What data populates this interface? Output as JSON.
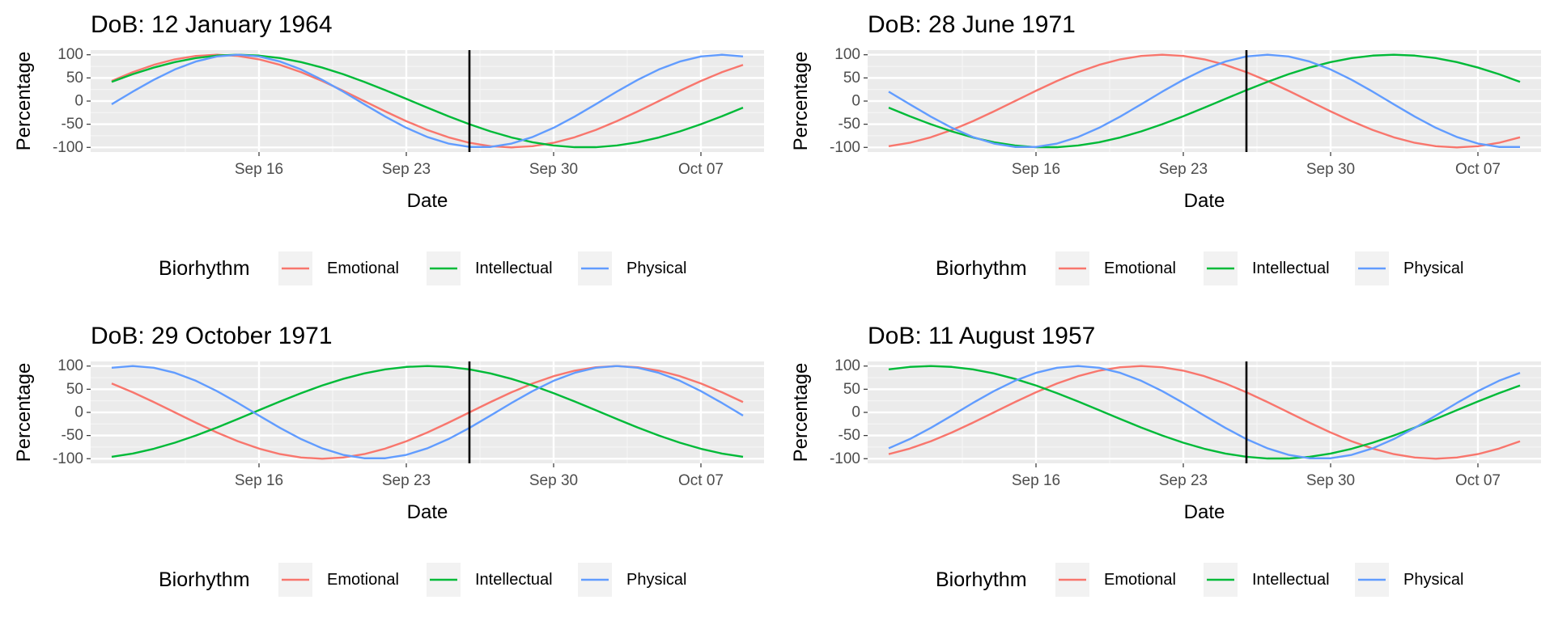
{
  "figure": {
    "legend_position": "bottom",
    "background": "#ffffff"
  },
  "colors": {
    "panel_bg": "#ebebeb",
    "grid_major": "#ffffff",
    "grid_minor": "#f5f5f5",
    "vline": "#000000",
    "Emotional": "#F8766D",
    "Intellectual": "#00BA38",
    "Physical": "#619CFF"
  },
  "chart_data": [
    {
      "type": "line",
      "title": "DoB: 12 January 1964",
      "xlabel": "Date",
      "ylabel": "Percentage",
      "x_range": [
        "2019-09-09",
        "2019-10-09"
      ],
      "xlim": [
        "2019-09-08",
        "2019-10-10"
      ],
      "ylim": [
        -110,
        110
      ],
      "x_ticks": [
        "Sep 16",
        "Sep 23",
        "Sep 30",
        "Oct 07"
      ],
      "x_tick_dates": [
        "2019-09-16",
        "2019-09-23",
        "2019-09-30",
        "2019-10-07"
      ],
      "y_ticks": [
        100,
        50,
        0,
        -50,
        -100
      ],
      "grid": true,
      "vline_date": "2019-09-26",
      "legend": {
        "title": "Biorhythm",
        "position": "bottom",
        "entries": [
          "Emotional",
          "Intellectual",
          "Physical"
        ]
      },
      "series": [
        {
          "name": "Emotional",
          "period_days": 28,
          "peak_date": "2019-09-14"
        },
        {
          "name": "Intellectual",
          "period_days": 33,
          "peak_date": "2019-09-15"
        },
        {
          "name": "Physical",
          "period_days": 23,
          "peak_date": "2019-09-15"
        }
      ]
    },
    {
      "type": "line",
      "title": "DoB: 28 June 1971",
      "xlabel": "Date",
      "ylabel": "Percentage",
      "x_range": [
        "2019-09-09",
        "2019-10-09"
      ],
      "xlim": [
        "2019-09-08",
        "2019-10-10"
      ],
      "ylim": [
        -110,
        110
      ],
      "x_ticks": [
        "Sep 16",
        "Sep 23",
        "Sep 30",
        "Oct 07"
      ],
      "x_tick_dates": [
        "2019-09-16",
        "2019-09-23",
        "2019-09-30",
        "2019-10-07"
      ],
      "y_ticks": [
        100,
        50,
        0,
        -50,
        -100
      ],
      "grid": true,
      "vline_date": "2019-09-26",
      "legend": {
        "title": "Biorhythm",
        "position": "bottom",
        "entries": [
          "Emotional",
          "Intellectual",
          "Physical"
        ]
      },
      "series": [
        {
          "name": "Emotional",
          "period_days": 28,
          "peak_date": "2019-09-22"
        },
        {
          "name": "Intellectual",
          "period_days": 33,
          "peak_date": "2019-10-03"
        },
        {
          "name": "Physical",
          "period_days": 23,
          "peak_date": "2019-09-27"
        }
      ]
    },
    {
      "type": "line",
      "title": "DoB: 29 October 1971",
      "xlabel": "Date",
      "ylabel": "Percentage",
      "x_range": [
        "2019-09-09",
        "2019-10-09"
      ],
      "xlim": [
        "2019-09-08",
        "2019-10-10"
      ],
      "ylim": [
        -110,
        110
      ],
      "x_ticks": [
        "Sep 16",
        "Sep 23",
        "Sep 30",
        "Oct 07"
      ],
      "x_tick_dates": [
        "2019-09-16",
        "2019-09-23",
        "2019-09-30",
        "2019-10-07"
      ],
      "y_ticks": [
        100,
        50,
        0,
        -50,
        -100
      ],
      "grid": true,
      "vline_date": "2019-09-26",
      "legend": {
        "title": "Biorhythm",
        "position": "bottom",
        "entries": [
          "Emotional",
          "Intellectual",
          "Physical"
        ]
      },
      "series": [
        {
          "name": "Emotional",
          "period_days": 28,
          "peak_date": "2019-10-03"
        },
        {
          "name": "Intellectual",
          "period_days": 33,
          "peak_date": "2019-09-24"
        },
        {
          "name": "Physical",
          "period_days": 23,
          "peak_date": "2019-09-10"
        }
      ]
    },
    {
      "type": "line",
      "title": "DoB: 11 August 1957",
      "xlabel": "Date",
      "ylabel": "Percentage",
      "x_range": [
        "2019-09-09",
        "2019-10-09"
      ],
      "xlim": [
        "2019-09-08",
        "2019-10-10"
      ],
      "ylim": [
        -110,
        110
      ],
      "x_ticks": [
        "Sep 16",
        "Sep 23",
        "Sep 30",
        "Oct 07"
      ],
      "x_tick_dates": [
        "2019-09-16",
        "2019-09-23",
        "2019-09-30",
        "2019-10-07"
      ],
      "y_ticks": [
        100,
        50,
        0,
        -50,
        -100
      ],
      "grid": true,
      "vline_date": "2019-09-26",
      "legend": {
        "title": "Biorhythm",
        "position": "bottom",
        "entries": [
          "Emotional",
          "Intellectual",
          "Physical"
        ]
      },
      "series": [
        {
          "name": "Emotional",
          "period_days": 28,
          "peak_date": "2019-09-21"
        },
        {
          "name": "Intellectual",
          "period_days": 33,
          "peak_date": "2019-09-11"
        },
        {
          "name": "Physical",
          "period_days": 23,
          "peak_date": "2019-09-18"
        }
      ]
    }
  ]
}
